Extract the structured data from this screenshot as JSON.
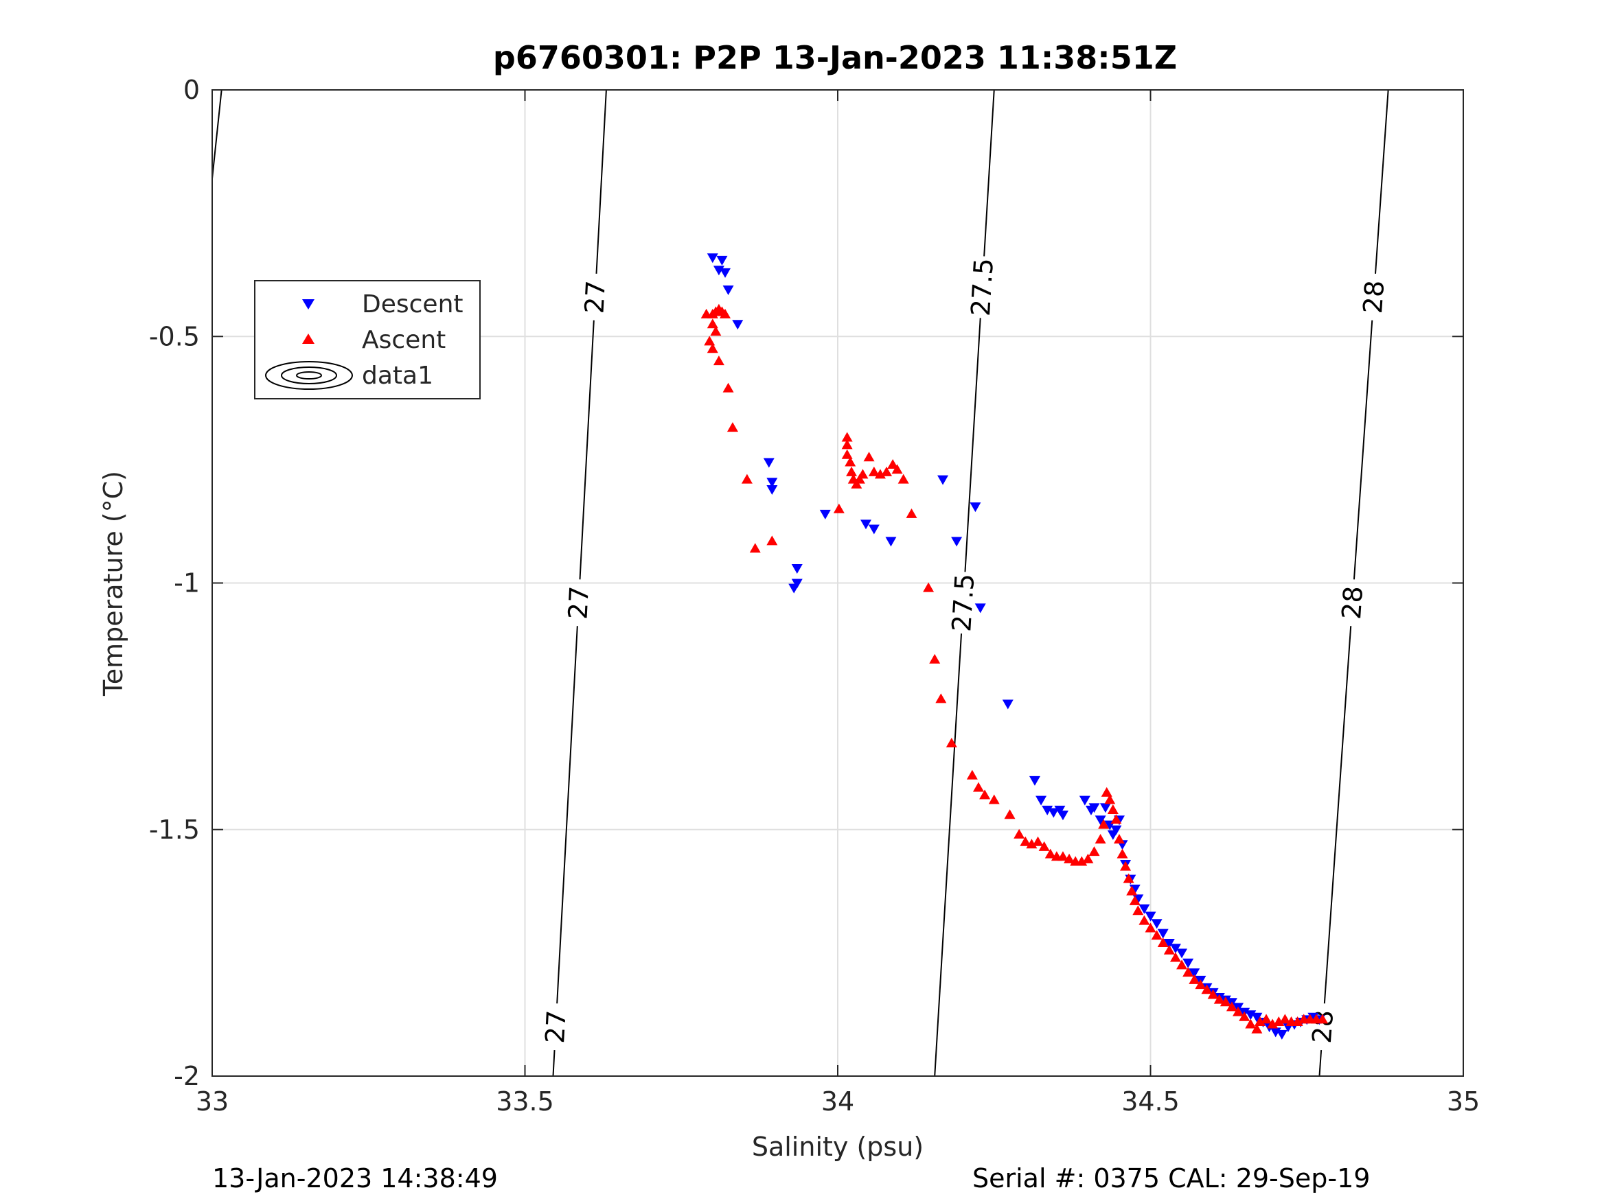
{
  "chart_data": {
    "type": "scatter",
    "title": "p6760301: P2P 13-Jan-2023 11:38:51Z",
    "xlabel": "Salinity (psu)",
    "ylabel": "Temperature (°C)",
    "xlim": [
      33,
      35
    ],
    "ylim": [
      -2,
      0
    ],
    "xticks": [
      "33",
      "33.5",
      "34",
      "34.5",
      "35"
    ],
    "yticks": [
      "0",
      "-0.5",
      "-1",
      "-1.5",
      "-2"
    ],
    "grid": true,
    "legend_position": "upper-left",
    "legend": [
      "Descent",
      "Ascent",
      "data1"
    ],
    "series": [
      {
        "name": "Descent",
        "color": "#0000ff",
        "marker": "triangle-down",
        "points": [
          [
            33.8,
            -0.34
          ],
          [
            33.815,
            -0.345
          ],
          [
            33.81,
            -0.365
          ],
          [
            33.82,
            -0.37
          ],
          [
            33.825,
            -0.405
          ],
          [
            33.84,
            -0.475
          ],
          [
            33.89,
            -0.755
          ],
          [
            33.895,
            -0.795
          ],
          [
            33.895,
            -0.81
          ],
          [
            33.935,
            -0.97
          ],
          [
            33.935,
            -1.0
          ],
          [
            33.93,
            -1.01
          ],
          [
            33.98,
            -0.86
          ],
          [
            34.045,
            -0.88
          ],
          [
            34.058,
            -0.89
          ],
          [
            34.085,
            -0.915
          ],
          [
            34.168,
            -0.79
          ],
          [
            34.19,
            -0.915
          ],
          [
            34.22,
            -0.845
          ],
          [
            34.228,
            -1.05
          ],
          [
            34.272,
            -1.245
          ],
          [
            34.315,
            -1.4
          ],
          [
            34.325,
            -1.44
          ],
          [
            34.335,
            -1.46
          ],
          [
            34.345,
            -1.465
          ],
          [
            34.355,
            -1.46
          ],
          [
            34.36,
            -1.47
          ],
          [
            34.395,
            -1.44
          ],
          [
            34.405,
            -1.46
          ],
          [
            34.41,
            -1.455
          ],
          [
            34.42,
            -1.48
          ],
          [
            34.428,
            -1.455
          ],
          [
            34.435,
            -1.49
          ],
          [
            34.44,
            -1.51
          ],
          [
            34.445,
            -1.5
          ],
          [
            34.45,
            -1.48
          ],
          [
            34.455,
            -1.53
          ],
          [
            34.46,
            -1.57
          ],
          [
            34.468,
            -1.6
          ],
          [
            34.475,
            -1.62
          ],
          [
            34.48,
            -1.64
          ],
          [
            34.49,
            -1.66
          ],
          [
            34.5,
            -1.675
          ],
          [
            34.51,
            -1.69
          ],
          [
            34.52,
            -1.71
          ],
          [
            34.53,
            -1.73
          ],
          [
            34.54,
            -1.74
          ],
          [
            34.55,
            -1.75
          ],
          [
            34.56,
            -1.77
          ],
          [
            34.57,
            -1.79
          ],
          [
            34.58,
            -1.805
          ],
          [
            34.59,
            -1.82
          ],
          [
            34.6,
            -1.83
          ],
          [
            34.61,
            -1.84
          ],
          [
            34.62,
            -1.845
          ],
          [
            34.63,
            -1.85
          ],
          [
            34.64,
            -1.86
          ],
          [
            34.65,
            -1.87
          ],
          [
            34.66,
            -1.875
          ],
          [
            34.67,
            -1.88
          ],
          [
            34.68,
            -1.89
          ],
          [
            34.69,
            -1.9
          ],
          [
            34.7,
            -1.91
          ],
          [
            34.71,
            -1.915
          ],
          [
            34.72,
            -1.9
          ],
          [
            34.73,
            -1.895
          ],
          [
            34.74,
            -1.89
          ],
          [
            34.75,
            -1.885
          ],
          [
            34.76,
            -1.88
          ],
          [
            34.77,
            -1.885
          ]
        ]
      },
      {
        "name": "Ascent",
        "color": "#ff0000",
        "marker": "triangle-up",
        "points": [
          [
            33.79,
            -0.455
          ],
          [
            33.8,
            -0.455
          ],
          [
            33.805,
            -0.45
          ],
          [
            33.81,
            -0.445
          ],
          [
            33.815,
            -0.45
          ],
          [
            33.82,
            -0.455
          ],
          [
            33.8,
            -0.475
          ],
          [
            33.805,
            -0.49
          ],
          [
            33.795,
            -0.51
          ],
          [
            33.8,
            -0.525
          ],
          [
            33.81,
            -0.55
          ],
          [
            33.825,
            -0.605
          ],
          [
            33.832,
            -0.685
          ],
          [
            33.855,
            -0.79
          ],
          [
            33.868,
            -0.93
          ],
          [
            33.895,
            -0.915
          ],
          [
            34.002,
            -0.85
          ],
          [
            34.015,
            -0.705
          ],
          [
            34.015,
            -0.72
          ],
          [
            34.015,
            -0.74
          ],
          [
            34.02,
            -0.755
          ],
          [
            34.022,
            -0.775
          ],
          [
            34.025,
            -0.79
          ],
          [
            34.03,
            -0.8
          ],
          [
            34.035,
            -0.79
          ],
          [
            34.04,
            -0.78
          ],
          [
            34.05,
            -0.745
          ],
          [
            34.058,
            -0.775
          ],
          [
            34.068,
            -0.78
          ],
          [
            34.078,
            -0.775
          ],
          [
            34.088,
            -0.76
          ],
          [
            34.095,
            -0.77
          ],
          [
            34.105,
            -0.79
          ],
          [
            34.118,
            -0.86
          ],
          [
            34.145,
            -1.01
          ],
          [
            34.155,
            -1.155
          ],
          [
            34.165,
            -1.235
          ],
          [
            34.182,
            -1.325
          ],
          [
            34.215,
            -1.39
          ],
          [
            34.225,
            -1.415
          ],
          [
            34.235,
            -1.43
          ],
          [
            34.25,
            -1.44
          ],
          [
            34.275,
            -1.47
          ],
          [
            34.29,
            -1.51
          ],
          [
            34.3,
            -1.525
          ],
          [
            34.31,
            -1.53
          ],
          [
            34.32,
            -1.525
          ],
          [
            34.33,
            -1.535
          ],
          [
            34.34,
            -1.55
          ],
          [
            34.35,
            -1.555
          ],
          [
            34.36,
            -1.555
          ],
          [
            34.37,
            -1.56
          ],
          [
            34.38,
            -1.565
          ],
          [
            34.39,
            -1.565
          ],
          [
            34.4,
            -1.56
          ],
          [
            34.41,
            -1.545
          ],
          [
            34.42,
            -1.52
          ],
          [
            34.425,
            -1.49
          ],
          [
            34.43,
            -1.425
          ],
          [
            34.435,
            -1.44
          ],
          [
            34.44,
            -1.46
          ],
          [
            34.445,
            -1.48
          ],
          [
            34.45,
            -1.52
          ],
          [
            34.455,
            -1.55
          ],
          [
            34.46,
            -1.575
          ],
          [
            34.465,
            -1.6
          ],
          [
            34.47,
            -1.625
          ],
          [
            34.475,
            -1.645
          ],
          [
            34.48,
            -1.665
          ],
          [
            34.49,
            -1.685
          ],
          [
            34.5,
            -1.7
          ],
          [
            34.51,
            -1.715
          ],
          [
            34.52,
            -1.73
          ],
          [
            34.53,
            -1.745
          ],
          [
            34.54,
            -1.76
          ],
          [
            34.55,
            -1.775
          ],
          [
            34.56,
            -1.79
          ],
          [
            34.57,
            -1.805
          ],
          [
            34.58,
            -1.815
          ],
          [
            34.59,
            -1.825
          ],
          [
            34.6,
            -1.835
          ],
          [
            34.61,
            -1.845
          ],
          [
            34.62,
            -1.85
          ],
          [
            34.63,
            -1.86
          ],
          [
            34.64,
            -1.87
          ],
          [
            34.65,
            -1.88
          ],
          [
            34.66,
            -1.895
          ],
          [
            34.67,
            -1.905
          ],
          [
            34.675,
            -1.89
          ],
          [
            34.685,
            -1.885
          ],
          [
            34.695,
            -1.895
          ],
          [
            34.705,
            -1.89
          ],
          [
            34.715,
            -1.885
          ],
          [
            34.725,
            -1.89
          ],
          [
            34.735,
            -1.89
          ],
          [
            34.745,
            -1.885
          ],
          [
            34.755,
            -1.885
          ],
          [
            34.765,
            -1.885
          ],
          [
            34.775,
            -1.885
          ]
        ]
      }
    ],
    "isopycnals": [
      {
        "value": 27,
        "label": "27",
        "points": [
          [
            33.63,
            0
          ],
          [
            33.545,
            -2
          ]
        ],
        "label_t": [
          0.21,
          0.52,
          0.95
        ]
      },
      {
        "value": 27.5,
        "label": "27.5",
        "points": [
          [
            34.25,
            0
          ],
          [
            34.155,
            -2
          ]
        ],
        "label_t": [
          0.2,
          0.52
        ]
      },
      {
        "value": 28,
        "label": "28",
        "points": [
          [
            34.88,
            0
          ],
          [
            34.77,
            -2
          ]
        ],
        "label_t": [
          0.21,
          0.52,
          0.95
        ]
      }
    ],
    "footer_left": "13-Jan-2023 14:38:49",
    "footer_right": "Serial #: 0375  CAL: 29-Sep-19"
  }
}
